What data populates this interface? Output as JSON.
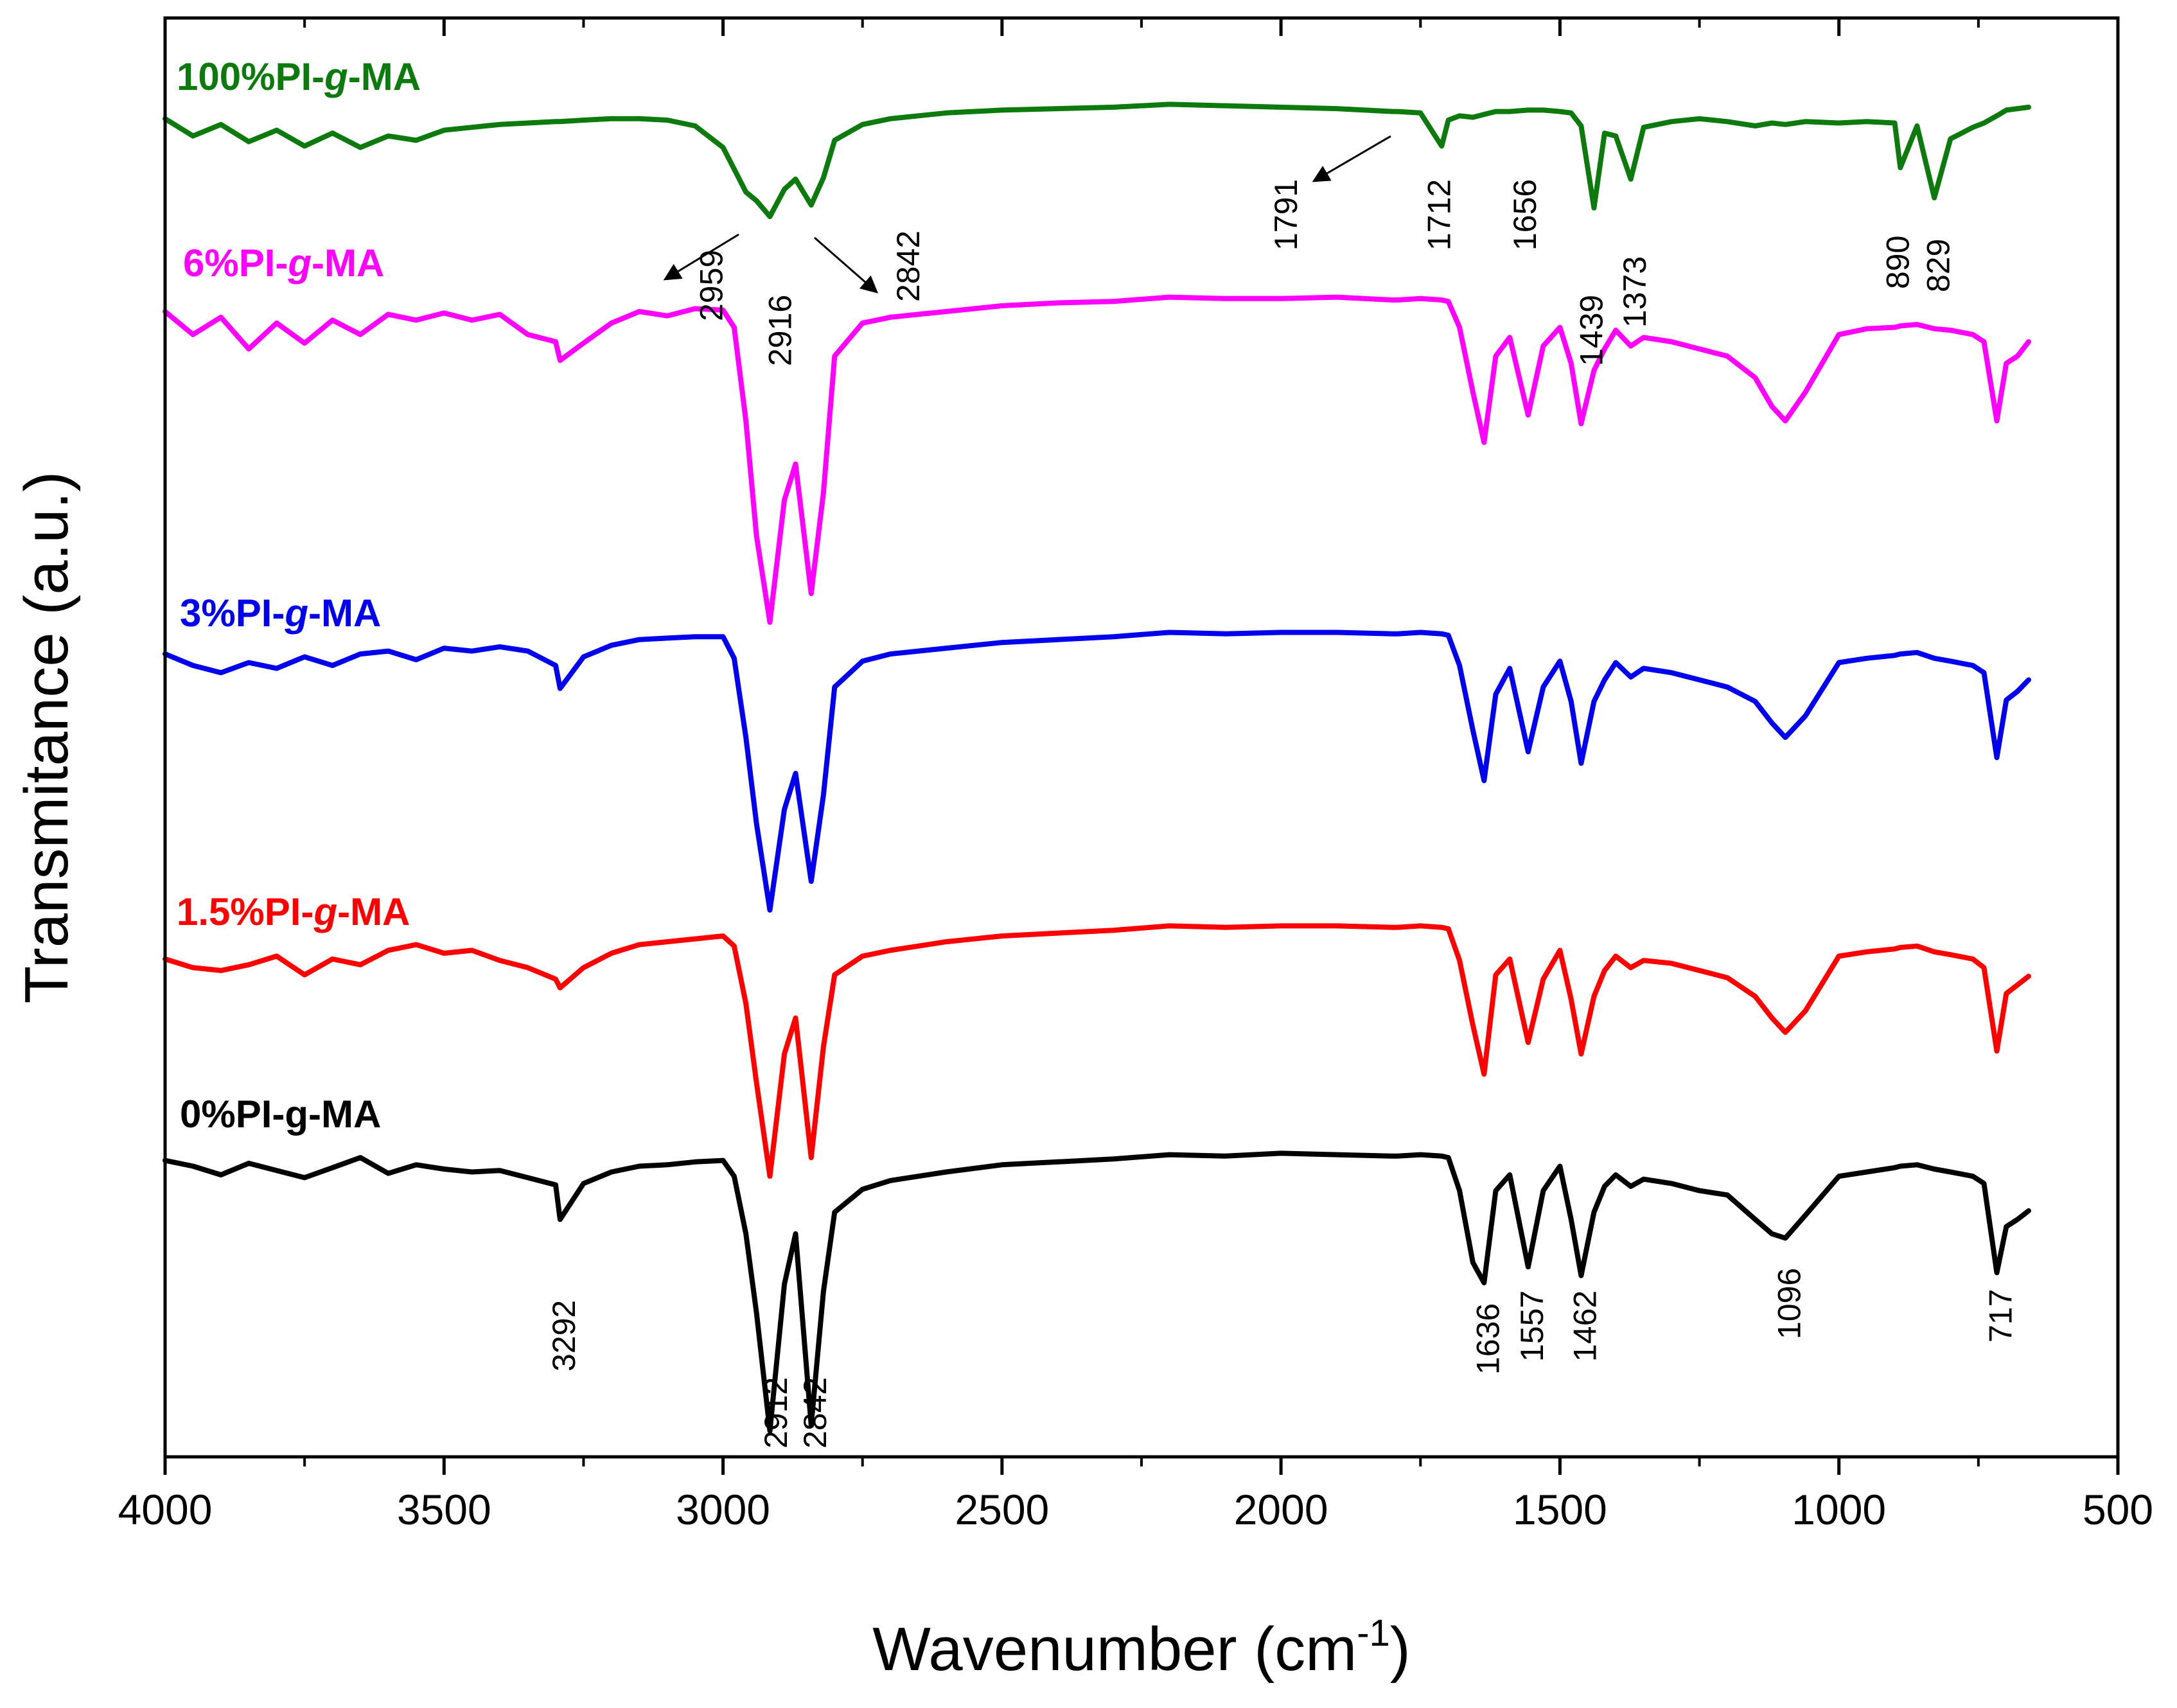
{
  "chart_data": {
    "type": "line",
    "title": "",
    "xlabel": "Wavenumber (cm",
    "xlabel_superscript": "-1",
    "xlabel_suffix": ")",
    "ylabel": "Transmitance (a.u.)",
    "xlim": [
      4000,
      500
    ],
    "ylim": [
      0,
      100
    ],
    "x_ticks": [
      4000,
      3500,
      3000,
      2500,
      2000,
      1500,
      1000,
      500
    ],
    "y_ticks": [],
    "grid": false,
    "x": [
      4000,
      3950,
      3900,
      3850,
      3800,
      3750,
      3700,
      3650,
      3600,
      3550,
      3500,
      3450,
      3400,
      3350,
      3300,
      3292,
      3250,
      3200,
      3150,
      3100,
      3050,
      3000,
      2980,
      2959,
      2940,
      2916,
      2890,
      2870,
      2842,
      2820,
      2800,
      2750,
      2700,
      2650,
      2600,
      2500,
      2400,
      2300,
      2200,
      2100,
      2000,
      1900,
      1800,
      1791,
      1750,
      1712,
      1700,
      1680,
      1656,
      1636,
      1615,
      1590,
      1557,
      1530,
      1500,
      1480,
      1462,
      1439,
      1420,
      1400,
      1373,
      1350,
      1300,
      1250,
      1200,
      1150,
      1120,
      1096,
      1060,
      1000,
      950,
      900,
      890,
      860,
      829,
      800,
      760,
      740,
      717,
      700,
      680,
      660
    ],
    "series": [
      {
        "name": "100%PI-g-MA",
        "label": "100%PI-",
        "label_italic": "g",
        "label_suffix": "-MA",
        "color": "#0d7a0d",
        "values": [
          93.0,
          91.8,
          92.6,
          91.4,
          92.2,
          91.1,
          92.0,
          91.0,
          91.8,
          91.5,
          92.2,
          92.4,
          92.6,
          92.7,
          92.8,
          92.8,
          92.9,
          93.0,
          93.0,
          92.9,
          92.5,
          91.0,
          89.5,
          87.9,
          87.3,
          86.2,
          88.1,
          88.8,
          87.0,
          88.9,
          91.5,
          92.6,
          93.0,
          93.2,
          93.4,
          93.6,
          93.7,
          93.8,
          94.0,
          93.9,
          93.8,
          93.7,
          93.5,
          93.5,
          93.4,
          91.1,
          92.9,
          93.2,
          93.1,
          93.3,
          93.5,
          93.5,
          93.6,
          93.6,
          93.5,
          93.4,
          92.5,
          86.8,
          92.0,
          91.8,
          88.8,
          92.4,
          92.8,
          93.0,
          92.8,
          92.5,
          92.7,
          92.6,
          92.8,
          92.7,
          92.8,
          92.7,
          89.6,
          92.5,
          87.5,
          91.6,
          92.4,
          92.7,
          93.2,
          93.6,
          93.7,
          93.8
        ]
      },
      {
        "name": "6%PI-g-MA",
        "label": "6%PI-",
        "label_italic": "g",
        "label_suffix": "-MA",
        "color": "#ff00ff",
        "values": [
          79.6,
          78.0,
          79.2,
          77.0,
          78.8,
          77.4,
          79.0,
          78.0,
          79.4,
          79.0,
          79.5,
          79.0,
          79.4,
          78.0,
          77.5,
          76.2,
          77.4,
          78.8,
          79.6,
          79.3,
          79.8,
          79.7,
          78.5,
          72.0,
          64.0,
          58.0,
          66.5,
          69.0,
          60.0,
          67.0,
          76.5,
          78.8,
          79.2,
          79.4,
          79.6,
          80.0,
          80.2,
          80.3,
          80.6,
          80.5,
          80.5,
          80.6,
          80.4,
          80.4,
          80.5,
          80.4,
          80.3,
          78.5,
          74.0,
          70.5,
          76.5,
          77.8,
          72.4,
          77.2,
          78.5,
          76.0,
          71.8,
          75.5,
          77.0,
          78.3,
          77.2,
          77.8,
          77.5,
          77.0,
          76.5,
          75.0,
          73.0,
          72.0,
          74.0,
          78.0,
          78.4,
          78.5,
          78.6,
          78.7,
          78.4,
          78.3,
          78.0,
          77.5,
          72.0,
          76.0,
          76.5,
          77.5
        ]
      },
      {
        "name": "3%PI-g-MA",
        "label": "3%PI-",
        "label_italic": "g",
        "label_suffix": "-MA",
        "color": "#0000ee",
        "values": [
          55.8,
          55.0,
          54.5,
          55.2,
          54.8,
          55.6,
          55.0,
          55.8,
          56.0,
          55.4,
          56.2,
          56.0,
          56.3,
          56.0,
          55.0,
          53.4,
          55.6,
          56.4,
          56.8,
          56.9,
          57.0,
          57.0,
          55.5,
          50.0,
          44.0,
          38.0,
          45.0,
          47.5,
          40.0,
          46.0,
          53.5,
          55.3,
          55.8,
          56.0,
          56.2,
          56.6,
          56.8,
          57.0,
          57.3,
          57.2,
          57.3,
          57.3,
          57.2,
          57.2,
          57.3,
          57.2,
          57.1,
          55.0,
          50.5,
          47.0,
          53.0,
          54.8,
          49.0,
          53.5,
          55.3,
          52.5,
          48.2,
          52.5,
          54.0,
          55.2,
          54.2,
          54.8,
          54.5,
          54.0,
          53.5,
          52.5,
          51.0,
          50.0,
          51.5,
          55.2,
          55.5,
          55.7,
          55.8,
          55.9,
          55.5,
          55.3,
          55.0,
          54.5,
          48.6,
          52.6,
          53.2,
          54.0
        ]
      },
      {
        "name": "1.5%PI-g-MA",
        "label": "1.5%PI-",
        "label_italic": "g",
        "label_suffix": "-MA",
        "color": "#ff0000",
        "values": [
          34.6,
          34.0,
          33.8,
          34.2,
          34.8,
          33.5,
          34.6,
          34.2,
          35.2,
          35.6,
          35.0,
          35.2,
          34.5,
          34.0,
          33.2,
          32.6,
          34.0,
          35.0,
          35.6,
          35.8,
          36.0,
          36.2,
          35.5,
          31.5,
          26.0,
          19.5,
          28.0,
          30.5,
          20.8,
          28.5,
          33.5,
          34.8,
          35.2,
          35.5,
          35.8,
          36.2,
          36.4,
          36.6,
          36.9,
          36.8,
          36.9,
          36.9,
          36.8,
          36.8,
          36.9,
          36.8,
          36.7,
          34.5,
          30.0,
          26.6,
          33.5,
          34.6,
          28.8,
          33.2,
          35.2,
          31.8,
          28.0,
          32.0,
          33.8,
          34.8,
          34.0,
          34.5,
          34.3,
          33.8,
          33.3,
          32.0,
          30.5,
          29.5,
          31.0,
          34.8,
          35.1,
          35.3,
          35.4,
          35.5,
          35.1,
          34.9,
          34.6,
          34.0,
          28.2,
          32.2,
          32.8,
          33.4
        ]
      },
      {
        "name": "0%PI-g-MA",
        "label": "0%PI-g-MA",
        "label_italic": "",
        "label_suffix": "",
        "color": "#000000",
        "values": [
          20.6,
          20.2,
          19.6,
          20.4,
          19.9,
          19.4,
          20.1,
          20.8,
          19.7,
          20.3,
          20.0,
          19.8,
          19.9,
          19.4,
          18.9,
          16.5,
          19.0,
          19.8,
          20.2,
          20.3,
          20.5,
          20.6,
          19.5,
          15.5,
          10.0,
          1.8,
          12.0,
          15.5,
          2.2,
          11.5,
          17.0,
          18.6,
          19.2,
          19.5,
          19.8,
          20.3,
          20.5,
          20.7,
          21.0,
          20.9,
          21.1,
          21.0,
          20.9,
          20.9,
          21.0,
          20.9,
          20.8,
          18.5,
          13.5,
          12.1,
          18.5,
          19.6,
          13.2,
          18.5,
          20.2,
          16.5,
          12.6,
          17.0,
          18.8,
          19.6,
          18.8,
          19.3,
          19.0,
          18.5,
          18.2,
          16.5,
          15.5,
          15.2,
          16.8,
          19.5,
          19.8,
          20.1,
          20.2,
          20.3,
          20.0,
          19.8,
          19.5,
          19.0,
          12.8,
          16.0,
          16.5,
          17.1
        ]
      }
    ],
    "annotations": [
      {
        "text": "2959",
        "x": 2959,
        "series": "100%PI-g-MA",
        "arrow": true
      },
      {
        "text": "2916",
        "x": 2916,
        "series": "100%PI-g-MA",
        "arrow": false
      },
      {
        "text": "2842",
        "x": 2842,
        "series": "100%PI-g-MA",
        "arrow": true
      },
      {
        "text": "1791",
        "x": 1791,
        "series": "100%PI-g-MA",
        "arrow": true
      },
      {
        "text": "1712",
        "x": 1712,
        "series": "100%PI-g-MA",
        "arrow": false
      },
      {
        "text": "1656",
        "x": 1656,
        "series": "100%PI-g-MA",
        "arrow": false
      },
      {
        "text": "1439",
        "x": 1439,
        "series": "100%PI-g-MA",
        "arrow": false
      },
      {
        "text": "1373",
        "x": 1373,
        "series": "100%PI-g-MA",
        "arrow": false
      },
      {
        "text": "890",
        "x": 890,
        "series": "100%PI-g-MA",
        "arrow": false
      },
      {
        "text": "829",
        "x": 829,
        "series": "100%PI-g-MA",
        "arrow": false
      },
      {
        "text": "3292",
        "x": 3292,
        "series": "0%PI-g-MA",
        "arrow": false
      },
      {
        "text": "2912",
        "x": 2912,
        "series": "0%PI-g-MA",
        "arrow": false
      },
      {
        "text": "2842",
        "x": 2842,
        "series": "0%PI-g-MA",
        "arrow": false
      },
      {
        "text": "1636",
        "x": 1636,
        "series": "0%PI-g-MA",
        "arrow": false
      },
      {
        "text": "1557",
        "x": 1557,
        "series": "0%PI-g-MA",
        "arrow": false
      },
      {
        "text": "1462",
        "x": 1462,
        "series": "0%PI-g-MA",
        "arrow": false
      },
      {
        "text": "1096",
        "x": 1096,
        "series": "0%PI-g-MA",
        "arrow": false
      },
      {
        "text": "717",
        "x": 717,
        "series": "0%PI-g-MA",
        "arrow": false
      }
    ]
  }
}
